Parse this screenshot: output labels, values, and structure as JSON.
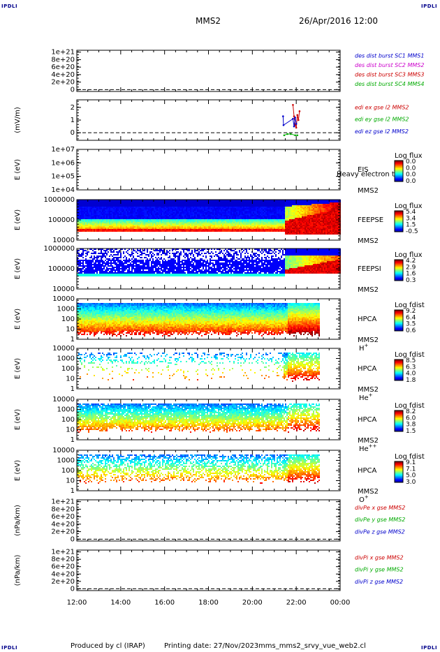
{
  "header": {
    "corner_label": "IPDLI",
    "spacecraft": "MMS2",
    "datetime": "26/Apr/2016 12:00"
  },
  "footer": {
    "produced_by": "Produced by cl (IRAP)",
    "printing_date": "Printing date: 27/Nov/2023",
    "filename": "mms_mms2_srvy_vue_web2.cl"
  },
  "chart_data": {
    "type": "heatmap",
    "time_axis": {
      "tick_labels": [
        "12:00",
        "14:00",
        "16:00",
        "18:00",
        "20:00",
        "22:00",
        "00:00"
      ],
      "range_hours": [
        12,
        24
      ]
    },
    "panels": [
      {
        "id": "des-dist",
        "kind": "line",
        "ylabel": "",
        "ytick_labels": [
          "1e+21",
          "8e+20",
          "6e+20",
          "4e+20",
          "2e+20",
          "0"
        ],
        "ytick_values": [
          1.0,
          0.8,
          0.6,
          0.4,
          0.2,
          0
        ],
        "ylim": [
          -0.05,
          1.05
        ],
        "legend": [
          {
            "text": "des dist burst SC1 MMS1",
            "color": "#0000cc"
          },
          {
            "text": "des dist burst SC2 MMS2",
            "color": "#cc00cc"
          },
          {
            "text": "des dist burst SC3 MMS3",
            "color": "#cc0000"
          },
          {
            "text": "des dist burst SC4 MMS4",
            "color": "#00aa00"
          }
        ],
        "zero_line": true
      },
      {
        "id": "edi",
        "kind": "line",
        "ylabel": "(mV/m)",
        "ytick_labels": [
          "2",
          "1",
          "0"
        ],
        "ytick_values": [
          2,
          1,
          0
        ],
        "ylim": [
          -0.6,
          2.6
        ],
        "legend": [
          {
            "text": "edi ex gse l2 MMS2",
            "color": "#cc0000"
          },
          {
            "text": "edi ey gse l2 MMS2",
            "color": "#00aa00"
          },
          {
            "text": "edi ez gse l2 MMS2",
            "color": "#0000cc"
          }
        ],
        "zero_line": true,
        "series": [
          {
            "color": "#cc0000",
            "x": [
              21.85,
              21.9,
              21.95,
              22.0,
              22.05,
              22.1,
              22.15
            ],
            "y": [
              2.2,
              1.3,
              0.6,
              0.4,
              1.4,
              1.0,
              1.7
            ]
          },
          {
            "color": "#0000cc",
            "x": [
              21.4,
              21.42,
              21.85,
              21.9,
              21.95,
              22.0
            ],
            "y": [
              1.3,
              0.6,
              1.1,
              0.5,
              1.2,
              0.7
            ]
          },
          {
            "color": "#00aa00",
            "x": [
              21.45,
              21.6,
              21.75,
              21.95,
              22.05
            ],
            "y": [
              -0.2,
              -0.1,
              -0.1,
              -0.2,
              -0.2
            ]
          }
        ]
      },
      {
        "id": "eis",
        "kind": "spectrogram",
        "ylabel": "E (eV)",
        "ytick_labels": [
          "1e+07",
          "1e+06",
          "1e+05",
          "1e+04"
        ],
        "label_lines": [
          "EIS",
          "MMS2"
        ],
        "overlay_text": "Heavy electron to",
        "colorbar": {
          "title": "Log flux",
          "labels": [
            "0.0",
            "0.0",
            "0.0",
            "0.0"
          ]
        }
      },
      {
        "id": "feepse",
        "kind": "spectrogram",
        "ylabel": "E (eV)",
        "ytick_labels": [
          "1000000",
          "100000",
          "10000"
        ],
        "label_lines": [
          "FEEPSE",
          "MMS2"
        ],
        "colorbar": {
          "title": "Log flux",
          "labels": [
            "5.4",
            "3.4",
            "1.5",
            "-0.5"
          ]
        }
      },
      {
        "id": "feepsi",
        "kind": "spectrogram",
        "ylabel": "E (eV)",
        "ytick_labels": [
          "1000000",
          "100000",
          "10000"
        ],
        "label_lines": [
          "FEEPSI",
          "MMS2"
        ],
        "colorbar": {
          "title": "Log flux",
          "labels": [
            "4.2",
            "2.9",
            "1.6",
            "0.3"
          ]
        }
      },
      {
        "id": "hpca-h",
        "kind": "spectrogram",
        "ylabel": "E (eV)",
        "ytick_labels": [
          "10000",
          "1000",
          "100",
          "10",
          "1"
        ],
        "label_lines": [
          "HPCA",
          "MMS2"
        ],
        "species": "H",
        "species_charge": "+",
        "colorbar": {
          "title": "Log fdist",
          "labels": [
            "9.2",
            "6.4",
            "3.5",
            "0.6"
          ]
        }
      },
      {
        "id": "hpca-he",
        "kind": "spectrogram",
        "ylabel": "E (eV)",
        "ytick_labels": [
          "10000",
          "1000",
          "100",
          "10",
          "1"
        ],
        "label_lines": [
          "HPCA",
          "MMS2"
        ],
        "species": "He",
        "species_charge": "+",
        "colorbar": {
          "title": "Log fdist",
          "labels": [
            "8.5",
            "6.3",
            "4.0",
            "1.8"
          ]
        }
      },
      {
        "id": "hpca-hepp",
        "kind": "spectrogram",
        "ylabel": "E (eV)",
        "ytick_labels": [
          "10000",
          "1000",
          "100",
          "10",
          "1"
        ],
        "label_lines": [
          "HPCA",
          "MMS2"
        ],
        "species": "He",
        "species_charge": "++",
        "colorbar": {
          "title": "Log fdist",
          "labels": [
            "8.2",
            "6.0",
            "3.8",
            "1.5"
          ]
        }
      },
      {
        "id": "hpca-o",
        "kind": "spectrogram",
        "ylabel": "E (eV)",
        "ytick_labels": [
          "10000",
          "1000",
          "100",
          "10",
          "1"
        ],
        "label_lines": [
          "HPCA",
          "MMS2"
        ],
        "species": "O",
        "species_charge": "+",
        "colorbar": {
          "title": "Log fdist",
          "labels": [
            "9.1",
            "7.1",
            "5.0",
            "3.0"
          ]
        }
      },
      {
        "id": "divpe",
        "kind": "line",
        "ylabel": "(nPa/km)",
        "ytick_labels": [
          "1e+21",
          "8e+20",
          "6e+20",
          "4e+20",
          "2e+20",
          "0"
        ],
        "ytick_values": [
          1.0,
          0.8,
          0.6,
          0.4,
          0.2,
          0
        ],
        "ylim": [
          -0.05,
          1.05
        ],
        "legend": [
          {
            "text": "divPe x gse MMS2",
            "color": "#cc0000"
          },
          {
            "text": "divPe y gse MMS2",
            "color": "#00aa00"
          },
          {
            "text": "divPe z gse MMS2",
            "color": "#0000cc"
          }
        ],
        "zero_line": true
      },
      {
        "id": "divpi",
        "kind": "line",
        "ylabel": "(nPa/km)",
        "ytick_labels": [
          "1e+21",
          "8e+20",
          "6e+20",
          "4e+20",
          "2e+20",
          "0"
        ],
        "ytick_values": [
          1.0,
          0.8,
          0.6,
          0.4,
          0.2,
          0
        ],
        "ylim": [
          -0.05,
          1.05
        ],
        "legend": [
          {
            "text": "divPi x gse MMS2",
            "color": "#cc0000"
          },
          {
            "text": "divPi y gse MMS2",
            "color": "#00aa00"
          },
          {
            "text": "divPi z gse MMS2",
            "color": "#0000cc"
          }
        ],
        "zero_line": true
      }
    ]
  }
}
